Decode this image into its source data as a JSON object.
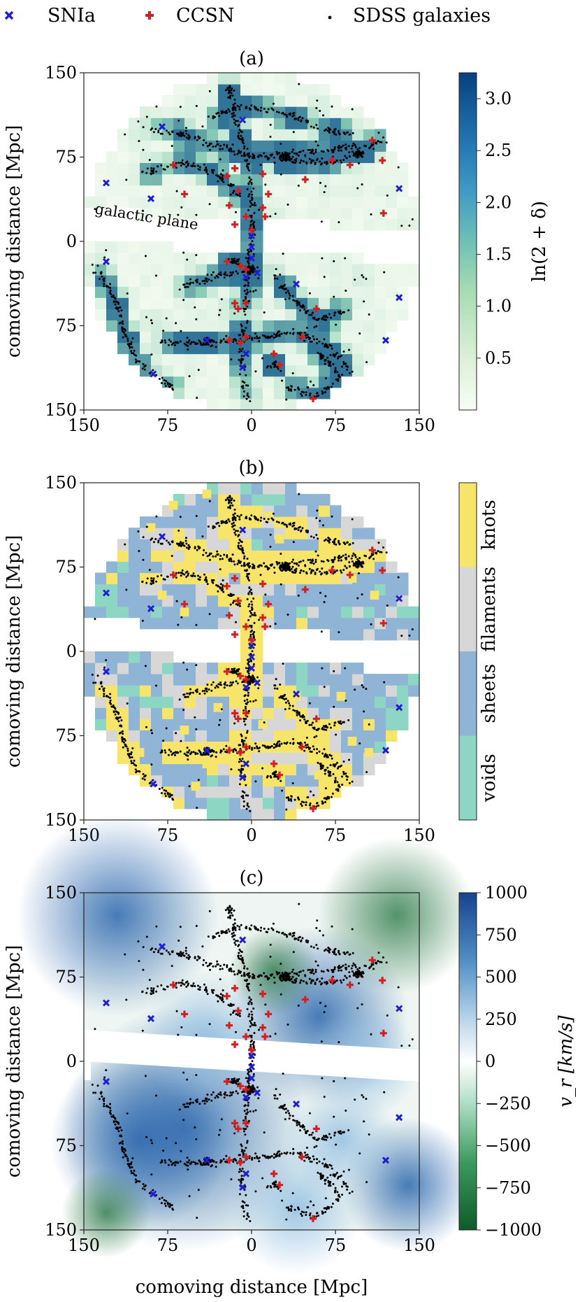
{
  "legend": {
    "entries": [
      {
        "label": "SNIa",
        "marker": "x",
        "color": "#1f1fd0"
      },
      {
        "label": "CCSN",
        "marker": "plus",
        "color": "#d42020"
      },
      {
        "label": "SDSS galaxies",
        "marker": "dot",
        "color": "#000000"
      }
    ]
  },
  "colors": {
    "snia": "#1f1fd0",
    "ccsn": "#d42020",
    "galaxy": "#000000",
    "density_low": "#f2faee",
    "density_mid": "#8fd0b8",
    "density_high": "#084c8a",
    "voids": "#8cd6c3",
    "sheets": "#8fb4d6",
    "filaments": "#d7d7d7",
    "knots": "#f7e56b",
    "vr_neg": "#1a6f3a",
    "vr_zero": "#ffffff",
    "vr_pos": "#1e4e9c"
  },
  "x_axis_label": "comoving distance [Mpc]",
  "annotation": "galactic plane",
  "chart_data": [
    {
      "type": "scatter",
      "title": "(a)",
      "background": "density field",
      "ylabel": "comoving distance [Mpc]",
      "xlabel": "",
      "xlim": [
        -150,
        150
      ],
      "ylim": [
        -150,
        150
      ],
      "x_ticks": [
        "150",
        "75",
        "0",
        "75",
        "150"
      ],
      "y_ticks": [
        "150",
        "75",
        "0",
        "75",
        "150"
      ],
      "colorbar": {
        "label": "ln(2 + δ)",
        "range": [
          0,
          3.25
        ],
        "ticks": [
          "0.5",
          "1.0",
          "1.5",
          "2.0",
          "2.5",
          "3.0"
        ],
        "tick_values": [
          0.5,
          1.0,
          1.5,
          2.0,
          2.5,
          3.0
        ]
      }
    },
    {
      "type": "scatter",
      "title": "(b)",
      "background": "cosmic web classification",
      "ylabel": "comoving distance [Mpc]",
      "xlabel": "",
      "xlim": [
        -150,
        150
      ],
      "ylim": [
        -150,
        150
      ],
      "x_ticks": [
        "150",
        "75",
        "0",
        "75",
        "150"
      ],
      "y_ticks": [
        "150",
        "75",
        "0",
        "75",
        "150"
      ],
      "colorbar": {
        "label": "",
        "categories": [
          "voids",
          "sheets",
          "filaments",
          "knots"
        ]
      }
    },
    {
      "type": "scatter",
      "title": "(c)",
      "background": "radial peculiar velocity",
      "ylabel": "comoving distance [Mpc]",
      "xlabel": "comoving distance [Mpc]",
      "xlim": [
        -150,
        150
      ],
      "ylim": [
        -150,
        150
      ],
      "x_ticks": [
        "150",
        "75",
        "0",
        "75",
        "150"
      ],
      "y_ticks": [
        "150",
        "75",
        "0",
        "75",
        "150"
      ],
      "colorbar": {
        "label": "v_r [km/s]",
        "range": [
          -1000,
          1000
        ],
        "ticks": [
          "1000",
          "750",
          "500",
          "250",
          "0",
          "−250",
          "−500",
          "−750",
          "−1000"
        ],
        "tick_values": [
          1000,
          750,
          500,
          250,
          0,
          -250,
          -500,
          -750,
          -1000
        ]
      }
    }
  ],
  "snia": [
    [
      -8,
      108
    ],
    [
      -80,
      102
    ],
    [
      -130,
      52
    ],
    [
      -90,
      38
    ],
    [
      -130,
      -18
    ],
    [
      -5,
      -32
    ],
    [
      5,
      -28
    ],
    [
      40,
      -38
    ],
    [
      -88,
      -118
    ],
    [
      -40,
      -88
    ],
    [
      -5,
      -100
    ],
    [
      -8,
      -112
    ],
    [
      132,
      47
    ],
    [
      132,
      -50
    ],
    [
      120,
      -88
    ],
    [
      0,
      5
    ],
    [
      0,
      -5
    ],
    [
      0,
      -15
    ]
  ],
  "ccsn": [
    [
      -70,
      68
    ],
    [
      -60,
      42
    ],
    [
      -22,
      58
    ],
    [
      -15,
      65
    ],
    [
      -12,
      45
    ],
    [
      -20,
      32
    ],
    [
      10,
      60
    ],
    [
      15,
      42
    ],
    [
      -5,
      22
    ],
    [
      12,
      22
    ],
    [
      -15,
      15
    ],
    [
      10,
      30
    ],
    [
      0,
      10
    ],
    [
      -22,
      -18
    ],
    [
      -10,
      -22
    ],
    [
      -5,
      -25
    ],
    [
      -15,
      -55
    ],
    [
      -12,
      -60
    ],
    [
      -5,
      -55
    ],
    [
      -20,
      -88
    ],
    [
      -10,
      -90
    ],
    [
      -5,
      -85
    ],
    [
      20,
      -100
    ],
    [
      25,
      -110
    ],
    [
      55,
      -140
    ],
    [
      58,
      -60
    ],
    [
      45,
      -85
    ],
    [
      48,
      55
    ],
    [
      72,
      72
    ],
    [
      88,
      68
    ],
    [
      108,
      90
    ],
    [
      117,
      72
    ],
    [
      118,
      25
    ]
  ],
  "knots": [
    [
      -70,
      130
    ],
    [
      -40,
      140
    ],
    [
      15,
      120
    ],
    [
      -90,
      110
    ],
    [
      -5,
      95
    ],
    [
      30,
      80
    ],
    [
      50,
      70
    ],
    [
      90,
      65
    ],
    [
      110,
      85
    ],
    [
      -80,
      50
    ],
    [
      -60,
      35
    ],
    [
      -115,
      10
    ],
    [
      -100,
      0
    ],
    [
      -35,
      -30
    ],
    [
      -20,
      -15
    ],
    [
      40,
      -40
    ],
    [
      -60,
      -70
    ],
    [
      10,
      -65
    ],
    [
      90,
      -80
    ],
    [
      105,
      -90
    ],
    [
      -40,
      -100
    ],
    [
      60,
      -110
    ],
    [
      -25,
      70
    ],
    [
      45,
      15
    ],
    [
      -30,
      -50
    ],
    [
      80,
      -40
    ],
    [
      110,
      50
    ],
    [
      -100,
      -90
    ],
    [
      25,
      100
    ],
    [
      -50,
      -120
    ]
  ]
}
